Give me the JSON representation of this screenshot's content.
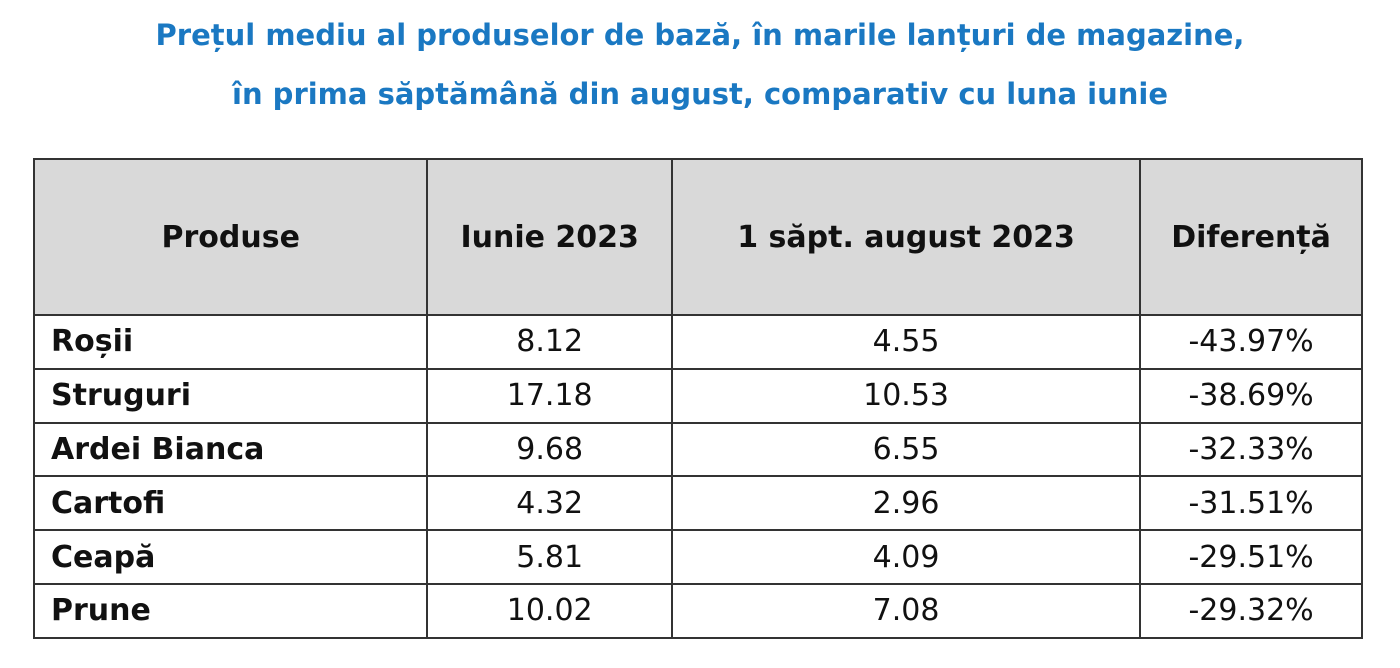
{
  "header": {
    "title_lines": [
      "Prețul mediu al produselor de bază, în marile lanțuri de magazine,",
      "în prima săptămână din august, comparativ cu luna iunie"
    ]
  },
  "table": {
    "columns": [
      "Produse",
      "Iunie 2023",
      "1 săpt. august 2023",
      "Diferență"
    ],
    "rows": [
      [
        "Roșii",
        "8.12",
        "4.55",
        "-43.97%"
      ],
      [
        "Struguri",
        "17.18",
        "10.53",
        "-38.69%"
      ],
      [
        "Ardei Bianca",
        "9.68",
        "6.55",
        "-32.33%"
      ],
      [
        "Cartofi",
        "4.32",
        "2.96",
        "-31.51%"
      ],
      [
        "Ceapă",
        "5.81",
        "4.09",
        "-29.51%"
      ],
      [
        "Prune",
        "10.02",
        "7.08",
        "-29.32%"
      ]
    ]
  }
}
